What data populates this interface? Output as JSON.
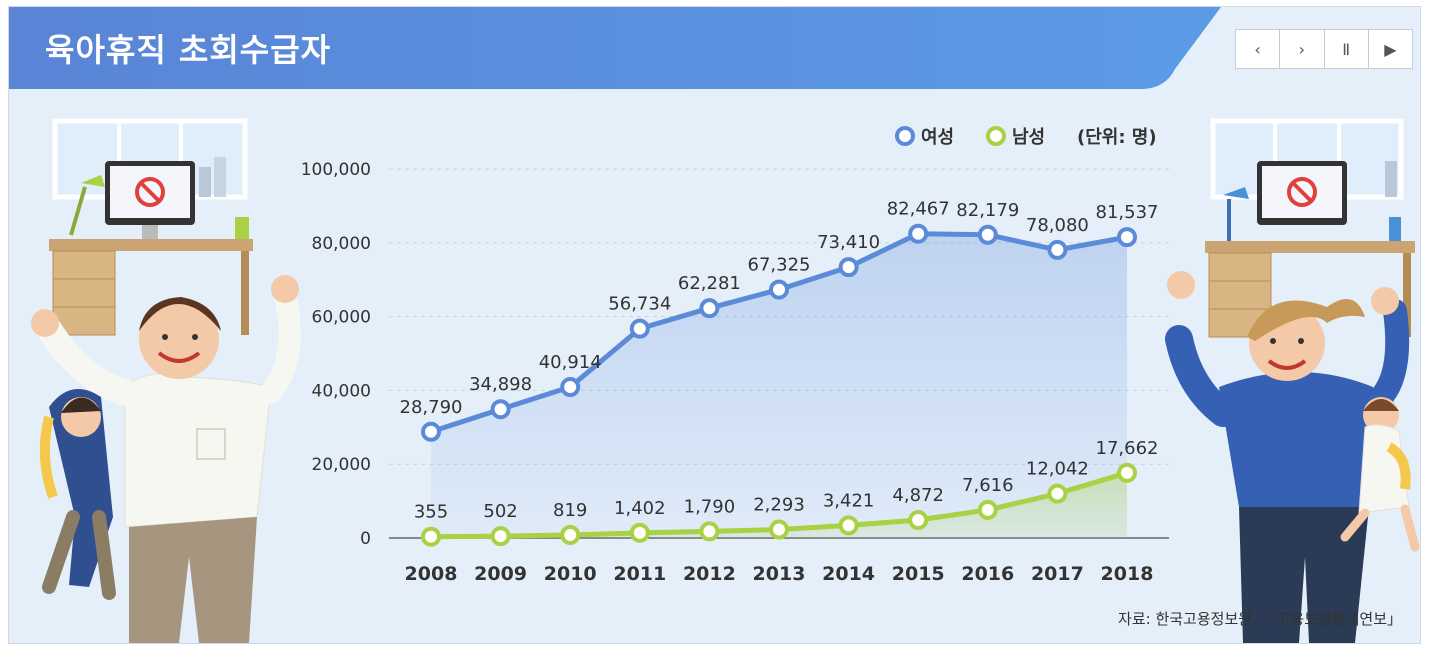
{
  "header": {
    "title": "육아휴직 초회수급자"
  },
  "controls": {
    "prev_icon": "chevron-left-icon",
    "next_icon": "chevron-right-icon",
    "pause_icon": "pause-icon",
    "play_icon": "play-icon",
    "prev": "‹",
    "next": "›",
    "pause": "Ⅱ",
    "play": "▶"
  },
  "legend": {
    "female": "여성",
    "male": "남성",
    "unit": "(단위: 명)"
  },
  "colors": {
    "banner": "#5b8bd8",
    "female": "#5b8bd8",
    "male": "#a8d143",
    "background": "#e5effa"
  },
  "chart_data": {
    "type": "line",
    "x": [
      "2008",
      "2009",
      "2010",
      "2011",
      "2012",
      "2013",
      "2014",
      "2015",
      "2016",
      "2017",
      "2018"
    ],
    "series": [
      {
        "name": "여성",
        "values": [
          28790,
          34898,
          40914,
          56734,
          62281,
          67325,
          73410,
          82467,
          82179,
          78080,
          81537
        ],
        "labels": [
          "28,790",
          "34,898",
          "40,914",
          "56,734",
          "62,281",
          "67,325",
          "73,410",
          "82,467",
          "82,179",
          "78,080",
          "81,537"
        ]
      },
      {
        "name": "남성",
        "values": [
          355,
          502,
          819,
          1402,
          1790,
          2293,
          3421,
          4872,
          7616,
          12042,
          17662
        ],
        "labels": [
          "355",
          "502",
          "819",
          "1,402",
          "1,790",
          "2,293",
          "3,421",
          "4,872",
          "7,616",
          "12,042",
          "17,662"
        ]
      }
    ],
    "yticks": [
      "0",
      "20,000",
      "40,000",
      "60,000",
      "80,000",
      "100,000"
    ],
    "ylim": [
      0,
      100000
    ],
    "grid": true,
    "legend_position": "top-right"
  },
  "source": "자료: 한국고용정보원, 「고용보험통계연보」"
}
